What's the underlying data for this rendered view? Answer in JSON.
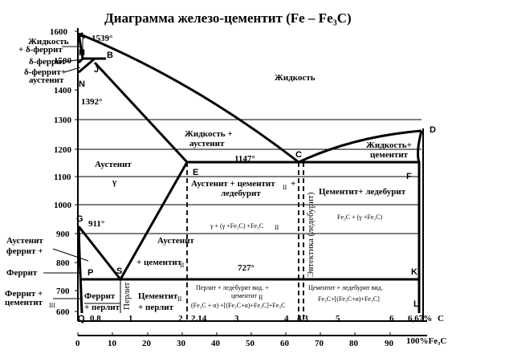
{
  "title": "Диаграмма железо-цементит (Fe – Fe₃C)",
  "y_ticks": [
    "1600",
    "1500",
    "1400",
    "1300",
    "1200",
    "1100",
    "1000",
    "900",
    "800",
    "700",
    "600"
  ],
  "x_ticks_pct": [
    "0",
    "10",
    "20",
    "30",
    "40",
    "50",
    "60",
    "70",
    "80",
    "90",
    "100%Fe₃C"
  ],
  "x_ticks_c": [
    "0.8",
    "1",
    "2",
    "2.14",
    "3",
    "4",
    "4.3",
    "5",
    "6",
    "6,67%",
    "C"
  ],
  "points": {
    "A": "A",
    "B": "B",
    "H": "H",
    "J": "J",
    "N": "N",
    "D": "D",
    "E": "E",
    "C": "C",
    "F": "F",
    "G": "G",
    "S": "S",
    "P": "P",
    "Q": "Q",
    "K": "K",
    "L": "L"
  },
  "temps": {
    "t1539": "1539°",
    "t1392": "1392°",
    "t1147": "1147°",
    "t911": "911°",
    "t727": "727°"
  },
  "left_labels": {
    "liq_delta_1": "Жидкость",
    "liq_delta_2": "+ δ-феррит",
    "delta": "δ-феррит",
    "delta_aus_1": "δ-феррит+",
    "delta_aus_2": "аустенит",
    "aus_ferr_1": "Аустенит",
    "aus_ferr_2": "феррит +",
    "ferrit": "Феррит",
    "ferr_cem_1": "Феррит +",
    "ferr_cem_2": "цементит",
    "ferr_cem_sub": "III"
  },
  "regions": {
    "liquid": "Жидкость",
    "liq_aus_1": "Жидкость +",
    "liq_aus_2": "аустенит",
    "liq_cem_1": "Жидкость+",
    "liq_cem_2": "цементит",
    "austenite": "Аустенит",
    "gamma": "γ",
    "aus_cem_led_1": "Аустенит + цементит",
    "aus_cem_led_sub": "II",
    "aus_cem_led_plus": "+",
    "aus_cem_led_2": "ледебурит",
    "aus_cem_led_formula": "γ + (γ +Fe₃C) +Fe₃C",
    "cem_led": "Цементит+ ледебурит",
    "cem_led_formula": "Fe₃C + (γ +Fe₃C)",
    "aus_cem_1": "Аустенит",
    "aus_cem_2": "+ цементит",
    "eutectic": "Эвтектика (ледебурит)",
    "ferr_perlit_1": "Феррит",
    "ferr_perlit_2": "+ перлит",
    "perlit": "Перлит",
    "cem_perlit_1": "Цементит",
    "cem_perlit_2": "+ перлит",
    "perlit_led_1": "Перлит + ледебурит вид. +",
    "perlit_led_2": "цементит",
    "perlit_led_formula": "(Fe₃C + α) +[(Fe₃C+α)+Fe₃C]+Fe₃C",
    "cem_led_vid": "Цементит + ледебурит вид.",
    "cem_led_vid_formula": "Fe₃C+[(Fe₃C+α)+Fe₃C]",
    "sub_II": "II",
    "sub_III": "III"
  },
  "colors": {
    "line": "#000000",
    "background": "#ffffff"
  }
}
